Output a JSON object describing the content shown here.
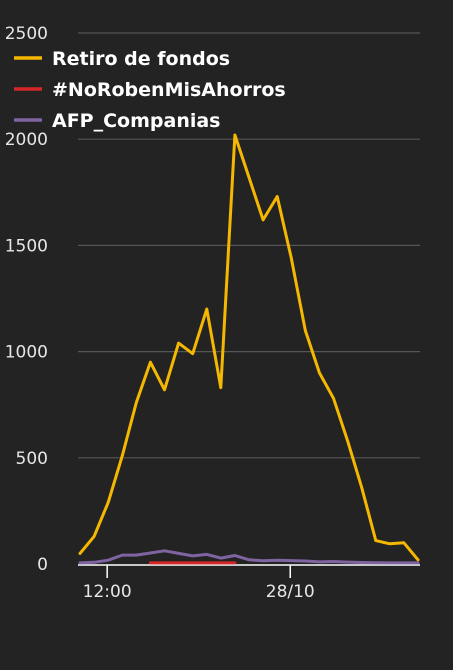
{
  "chart_data": {
    "type": "line",
    "title": "",
    "xlabel": "",
    "ylabel": "",
    "ylim": [
      0,
      2500
    ],
    "yticks": [
      0,
      500,
      1000,
      1500,
      2000,
      2500
    ],
    "xtick_labels": [
      {
        "label": "12:00",
        "index": 2
      },
      {
        "label": "28/10",
        "index": 15
      }
    ],
    "grid": "horizontal",
    "legend_position": "top-left",
    "series": [
      {
        "name": "Retiro de fondos",
        "color": "#f5b800",
        "values": [
          50,
          130,
          290,
          510,
          760,
          950,
          820,
          1040,
          990,
          1200,
          830,
          2020,
          1820,
          1620,
          1730,
          1440,
          1100,
          900,
          780,
          580,
          360,
          110,
          95,
          100,
          20
        ]
      },
      {
        "name": "#NoRobenMisAhorros",
        "color": "#d62728",
        "values": [
          null,
          null,
          null,
          null,
          null,
          5,
          5,
          5,
          5,
          5,
          5,
          5,
          null,
          null,
          null,
          null,
          null,
          null,
          null,
          null,
          null,
          null,
          null,
          null,
          null
        ]
      },
      {
        "name": "AFP_Companias",
        "color": "#8064a2",
        "values": [
          5,
          8,
          18,
          42,
          42,
          52,
          62,
          50,
          38,
          45,
          28,
          40,
          20,
          15,
          18,
          16,
          14,
          10,
          12,
          9,
          7,
          6,
          5,
          5,
          5
        ]
      }
    ]
  }
}
